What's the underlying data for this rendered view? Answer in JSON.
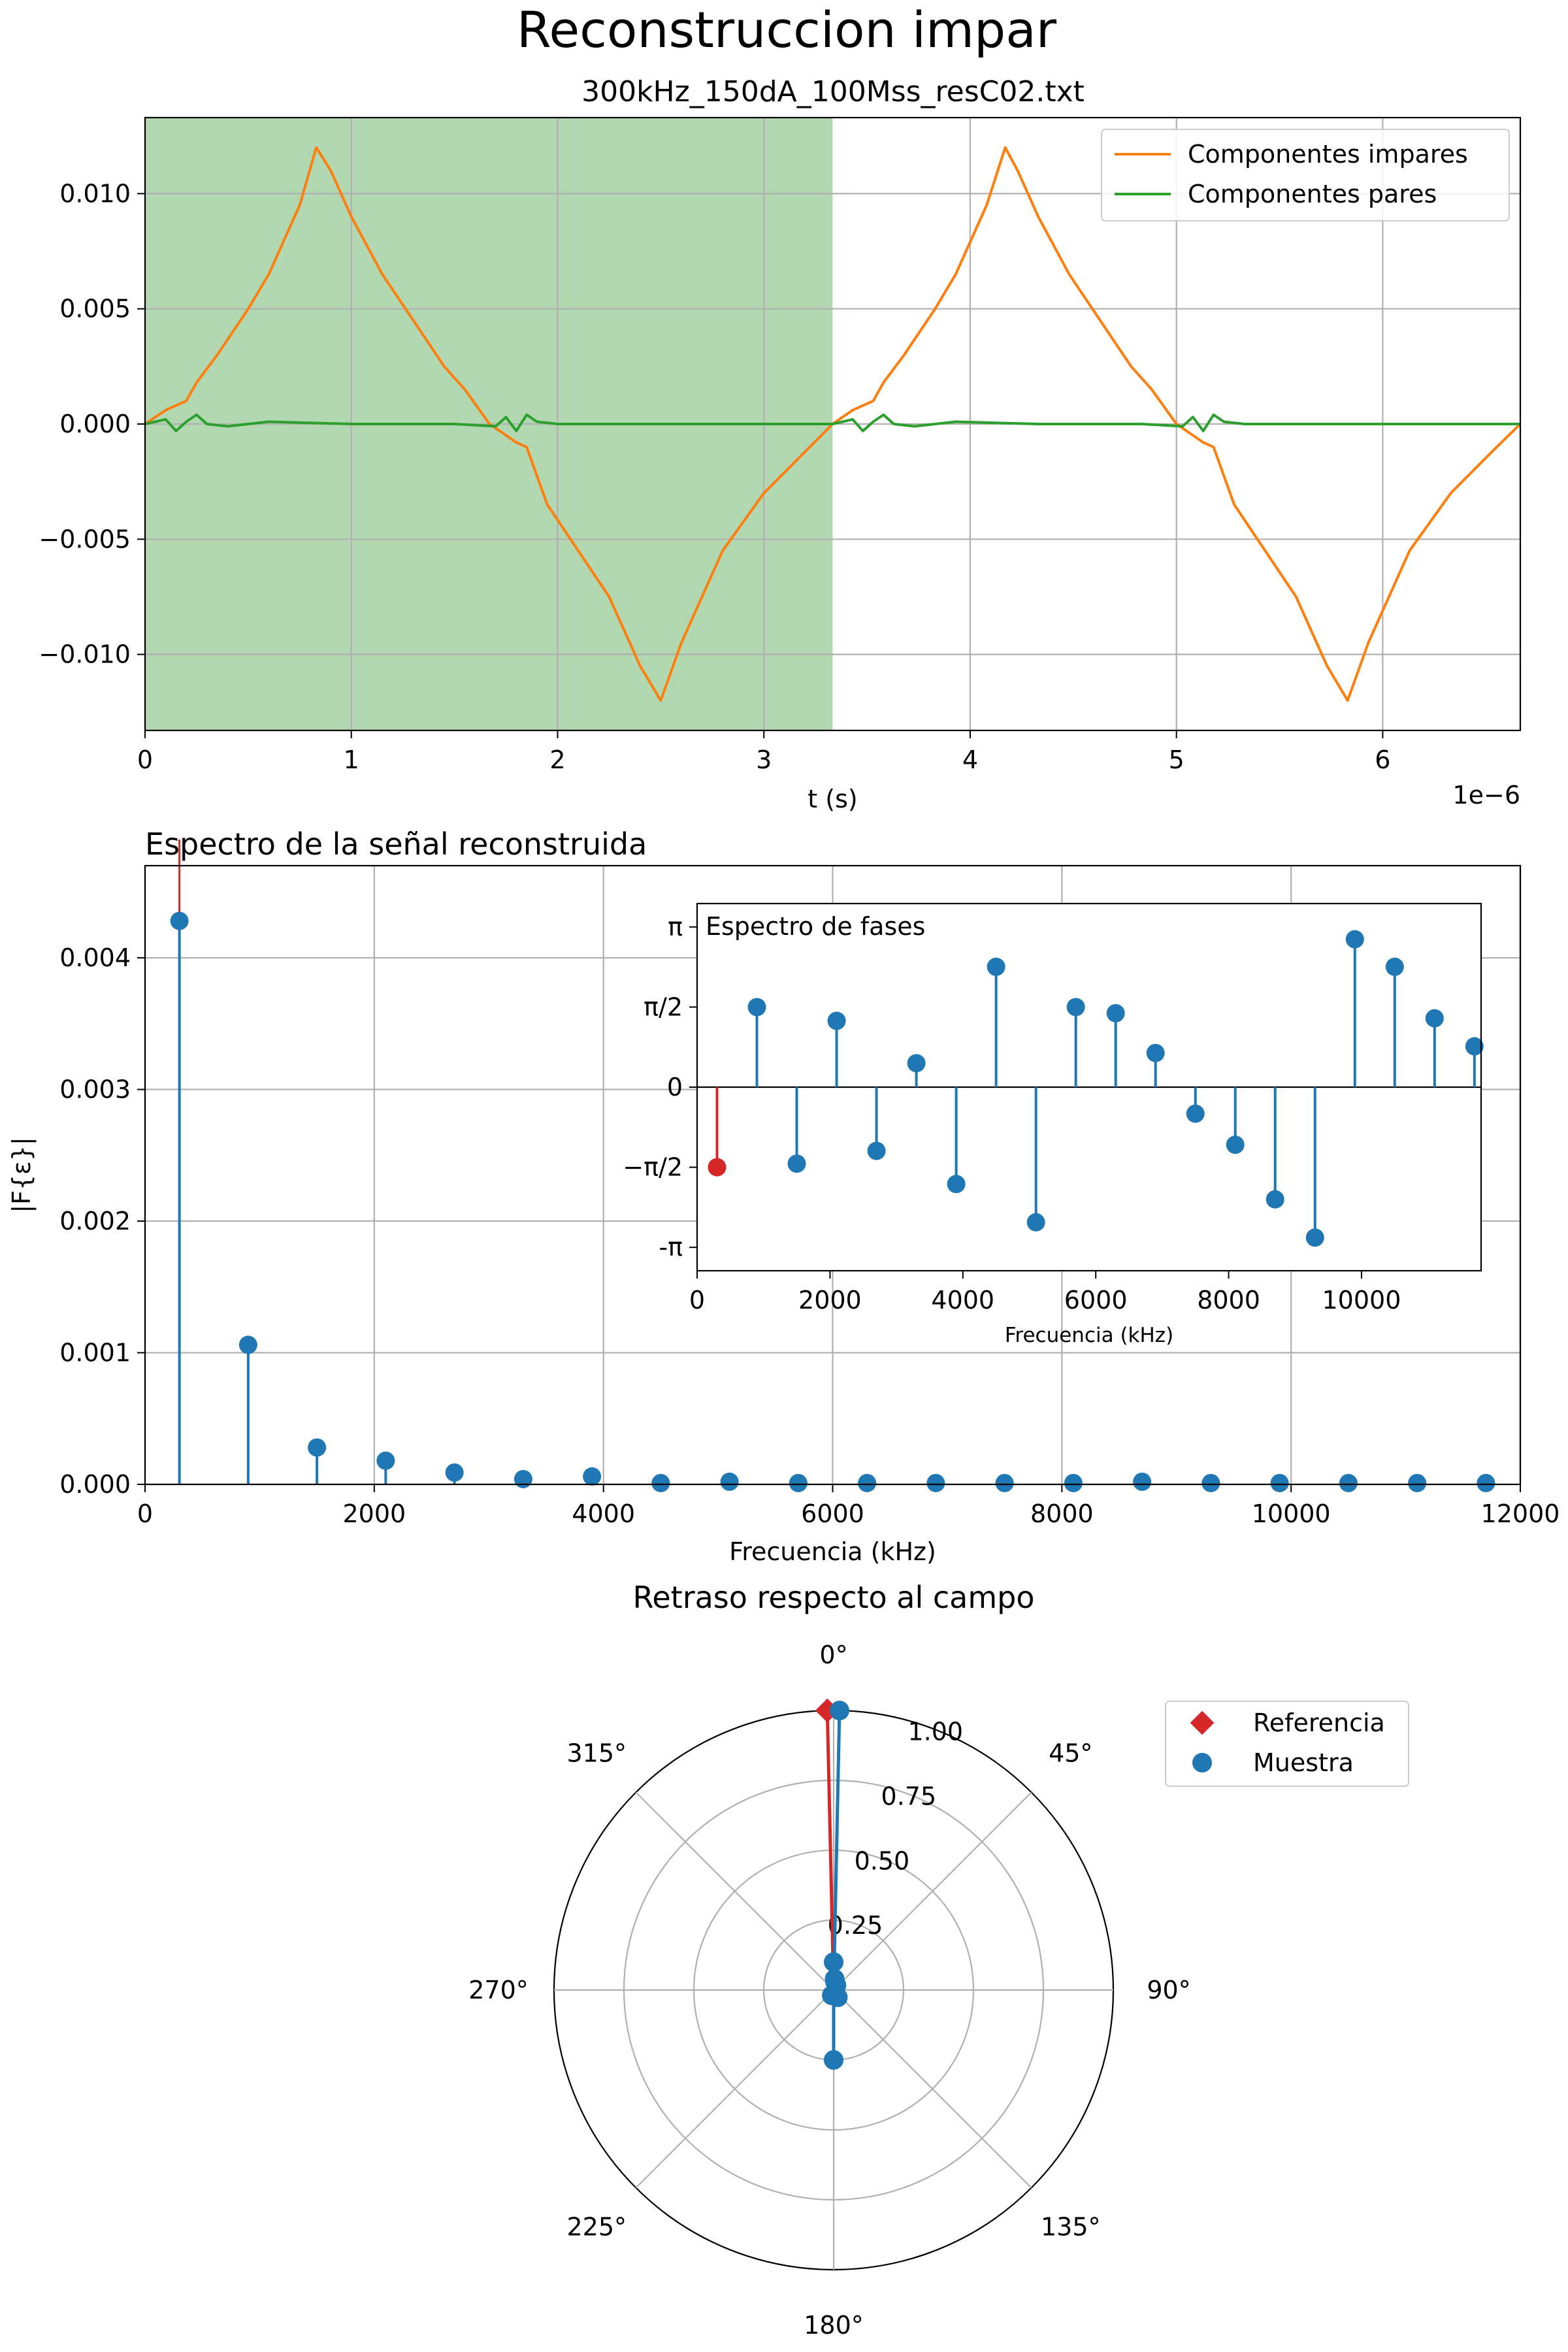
{
  "figure": {
    "title": "Reconstruccion impar",
    "subtitle": "300kHz_150dA_100Mss_resC02.txt"
  },
  "colors": {
    "orange": "#ff7f0e",
    "green": "#2ca02c",
    "blue": "#1f77b4",
    "red": "#d62728",
    "shade": "#b2d8b2",
    "grid": "#b0b0b0"
  },
  "chart_data": [
    {
      "type": "line",
      "xlabel": "t (s)",
      "x_offset_label": "1e−6",
      "xlim": [
        0,
        6.667e-06
      ],
      "ylim": [
        -0.0133,
        0.0133
      ],
      "xticks": [
        0,
        1e-06,
        2e-06,
        3e-06,
        4e-06,
        5e-06,
        6e-06
      ],
      "xtick_labels": [
        "0",
        "1",
        "2",
        "3",
        "4",
        "5",
        "6"
      ],
      "yticks": [
        -0.01,
        -0.005,
        0.0,
        0.005,
        0.01
      ],
      "ytick_labels": [
        "−0.010",
        "−0.005",
        "0.000",
        "0.005",
        "0.010"
      ],
      "grid": true,
      "shaded_region": [
        0,
        3.333e-06
      ],
      "legend_position": "upper right",
      "series": [
        {
          "name": "Componentes impares",
          "color": "#ff7f0e",
          "x": [
            0,
            1e-07,
            2e-07,
            2.5e-07,
            3.5e-07,
            5e-07,
            6e-07,
            7.5e-07,
            8.3e-07,
            9e-07,
            1e-06,
            1.15e-06,
            1.3e-06,
            1.45e-06,
            1.55e-06,
            1.67e-06,
            1.8e-06,
            1.85e-06,
            1.95e-06,
            2.1e-06,
            2.25e-06,
            2.4e-06,
            2.5e-06,
            2.6e-06,
            2.8e-06,
            3e-06,
            3.2e-06,
            3.333e-06,
            3.43e-06,
            3.53e-06,
            3.58e-06,
            3.68e-06,
            3.83e-06,
            3.93e-06,
            4.08e-06,
            4.17e-06,
            4.23e-06,
            4.33e-06,
            4.48e-06,
            4.63e-06,
            4.78e-06,
            4.88e-06,
            5e-06,
            5.13e-06,
            5.18e-06,
            5.28e-06,
            5.43e-06,
            5.58e-06,
            5.73e-06,
            5.83e-06,
            5.93e-06,
            6.13e-06,
            6.33e-06,
            6.53e-06,
            6.667e-06
          ],
          "y": [
            0.0,
            0.0006,
            0.001,
            0.0018,
            0.003,
            0.005,
            0.0065,
            0.0095,
            0.012,
            0.011,
            0.009,
            0.0065,
            0.0045,
            0.0025,
            0.0015,
            0.0,
            -0.0008,
            -0.001,
            -0.0035,
            -0.0055,
            -0.0075,
            -0.0105,
            -0.012,
            -0.0095,
            -0.0055,
            -0.003,
            -0.0012,
            0.0,
            0.0006,
            0.001,
            0.0018,
            0.003,
            0.005,
            0.0065,
            0.0095,
            0.012,
            0.011,
            0.009,
            0.0065,
            0.0045,
            0.0025,
            0.0015,
            0.0,
            -0.0008,
            -0.001,
            -0.0035,
            -0.0055,
            -0.0075,
            -0.0105,
            -0.012,
            -0.0095,
            -0.0055,
            -0.003,
            -0.0012,
            0.0
          ]
        },
        {
          "name": "Componentes pares",
          "color": "#2ca02c",
          "x": [
            0,
            1e-07,
            1.5e-07,
            2e-07,
            2.5e-07,
            3e-07,
            4e-07,
            6e-07,
            1e-06,
            1.5e-06,
            1.7e-06,
            1.75e-06,
            1.8e-06,
            1.85e-06,
            1.9e-06,
            2e-06,
            2.5e-06,
            3e-06,
            3.333e-06,
            3.43e-06,
            3.48e-06,
            3.53e-06,
            3.58e-06,
            3.63e-06,
            3.73e-06,
            3.93e-06,
            4.33e-06,
            4.83e-06,
            5.03e-06,
            5.08e-06,
            5.13e-06,
            5.18e-06,
            5.23e-06,
            5.33e-06,
            5.83e-06,
            6.33e-06,
            6.667e-06
          ],
          "y": [
            0.0,
            0.0002,
            -0.0003,
            0.0001,
            0.0004,
            0.0,
            -0.0001,
            0.0001,
            0.0,
            0.0,
            -0.0001,
            0.0003,
            -0.0003,
            0.0004,
            0.0001,
            0.0,
            0.0,
            0.0,
            0.0,
            0.0002,
            -0.0003,
            0.0001,
            0.0004,
            0.0,
            -0.0001,
            0.0001,
            0.0,
            0.0,
            -0.0001,
            0.0003,
            -0.0003,
            0.0004,
            0.0001,
            0.0,
            0.0,
            0.0,
            0.0
          ]
        }
      ]
    },
    {
      "type": "stem",
      "title": "Espectro de la señal reconstruida",
      "xlabel": "Frecuencia (kHz)",
      "ylabel": "|F{ε}|",
      "xlim": [
        0,
        12000
      ],
      "ylim": [
        0,
        0.0047
      ],
      "xticks": [
        0,
        2000,
        4000,
        6000,
        8000,
        10000,
        12000
      ],
      "xtick_labels": [
        "0",
        "2000",
        "4000",
        "6000",
        "8000",
        "10000",
        "12000"
      ],
      "yticks": [
        0.0,
        0.001,
        0.002,
        0.003,
        0.004
      ],
      "ytick_labels": [
        "0.000",
        "0.001",
        "0.002",
        "0.003",
        "0.004"
      ],
      "grid": true,
      "reference_line_x": 300,
      "x": [
        300,
        900,
        1500,
        2100,
        2700,
        3300,
        3900,
        4500,
        5100,
        5700,
        6300,
        6900,
        7500,
        8100,
        8700,
        9300,
        9900,
        10500,
        11100,
        11700
      ],
      "values": [
        0.00428,
        0.00106,
        0.00028,
        0.00018,
        9e-05,
        4e-05,
        6e-05,
        1e-05,
        2e-05,
        1e-05,
        1e-05,
        1e-05,
        1e-05,
        1e-05,
        2e-05,
        1e-05,
        1e-05,
        1e-05,
        1e-05,
        1e-05
      ]
    },
    {
      "type": "stem",
      "title": "Espectro de fases",
      "xlabel": "Frecuencia (kHz)",
      "xlim": [
        0,
        11800
      ],
      "ylim": [
        -3.6,
        3.6
      ],
      "xticks": [
        0,
        2000,
        4000,
        6000,
        8000,
        10000
      ],
      "xtick_labels": [
        "0",
        "2000",
        "4000",
        "6000",
        "8000",
        "10000"
      ],
      "yticks": [
        3.14159,
        1.5708,
        0,
        -1.5708,
        -3.14159
      ],
      "ytick_labels": [
        "π",
        "π/2",
        "0",
        "−π/2",
        "-π"
      ],
      "grid": false,
      "x": [
        300,
        900,
        1500,
        2100,
        2700,
        3300,
        3900,
        4500,
        5100,
        5700,
        6300,
        6900,
        7500,
        8100,
        8700,
        9300,
        9900,
        10500,
        11100,
        11700
      ],
      "values": [
        -1.5708,
        1.57,
        -1.5,
        1.3,
        -1.25,
        0.47,
        -1.9,
        2.36,
        -2.65,
        1.57,
        1.45,
        0.67,
        -0.52,
        -1.13,
        -2.2,
        -2.95,
        2.9,
        2.36,
        1.35,
        0.8
      ],
      "highlight_index": 0
    },
    {
      "type": "polar",
      "title": "Retraso respecto al campo",
      "rlim": [
        0,
        1.0
      ],
      "rticks": [
        0.25,
        0.5,
        0.75,
        1.0
      ],
      "rtick_labels": [
        "0.25",
        "0.50",
        "0.75",
        "1.00"
      ],
      "angle_labels": [
        "0°",
        "45°",
        "90°",
        "135°",
        "180°",
        "225°",
        "270°",
        "315°"
      ],
      "theta_zero": "top",
      "theta_direction": "clockwise",
      "legend_position": "upper right",
      "series": [
        {
          "name": "Referencia",
          "marker": "diamond",
          "color": "#d62728",
          "theta_deg": [
            -1.3
          ],
          "r": [
            1.0
          ]
        },
        {
          "name": "Muestra",
          "marker": "circle",
          "color": "#1f77b4",
          "theta_deg": [
            1.2,
            0.0,
            5.0,
            180.0,
            10.0,
            200.0,
            30.0,
            150.0
          ],
          "r": [
            1.0,
            0.1,
            0.04,
            0.25,
            0.03,
            0.02,
            0.02,
            0.03
          ]
        }
      ]
    }
  ]
}
